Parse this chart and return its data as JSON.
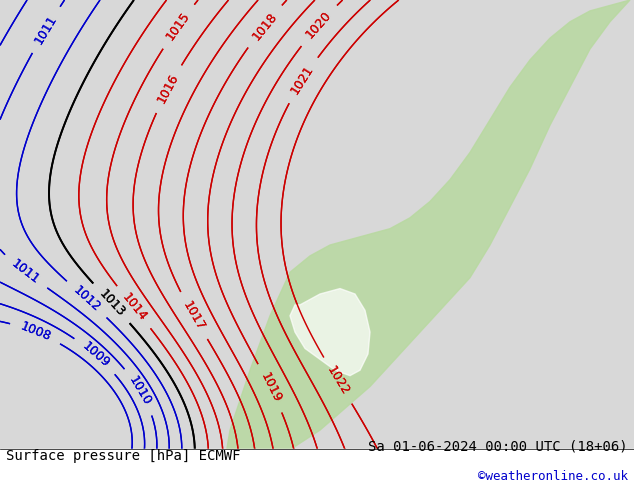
{
  "title_left": "Surface pressure [hPa] ECMWF",
  "title_right": "Sa 01-06-2024 00:00 UTC (18+06)",
  "credit": "©weatheronline.co.uk",
  "bg_color": "#d8d8d8",
  "land_color_green": "#b8d8a0",
  "land_color_gray": "#c8c8c8",
  "sea_color": "#e8e8f0",
  "contour_color_red": "#cc0000",
  "contour_color_blue": "#0000cc",
  "contour_color_black": "#000000",
  "label_fontsize": 9,
  "footer_fontsize": 10,
  "credit_fontsize": 9,
  "credit_color": "#0000cc"
}
